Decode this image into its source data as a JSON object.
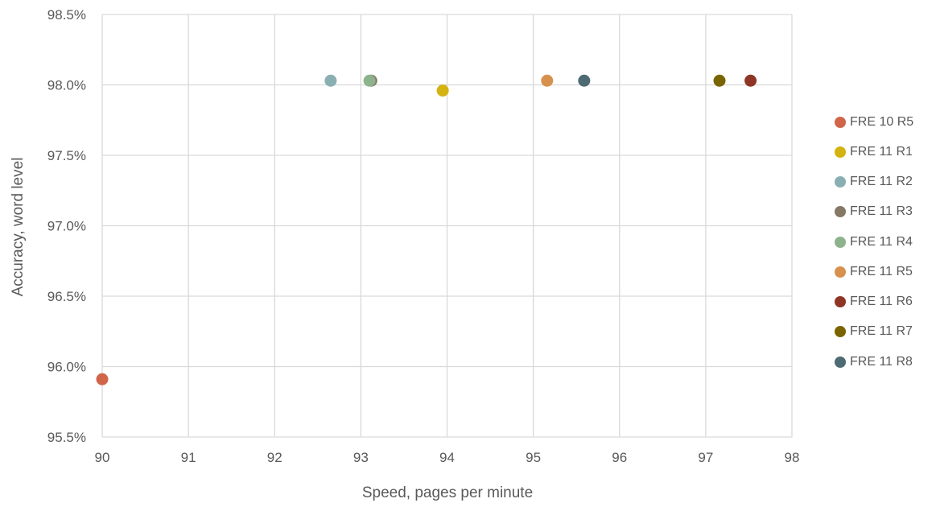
{
  "chart_data": {
    "type": "scatter",
    "title": "",
    "xlabel": "Speed, pages per minute",
    "ylabel": "Accuracy, word level",
    "xlim": [
      90,
      98
    ],
    "ylim": [
      95.5,
      98.5
    ],
    "x_ticks": [
      90,
      91,
      92,
      93,
      94,
      95,
      96,
      97,
      98
    ],
    "y_ticks": [
      95.5,
      96.0,
      96.5,
      97.0,
      97.5,
      98.0,
      98.5
    ],
    "y_tick_format": "percent_1dp",
    "x_tick_labels": [
      "90",
      "91",
      "92",
      "93",
      "94",
      "95",
      "96",
      "97",
      "98"
    ],
    "y_tick_labels": [
      "95.5%",
      "96.0%",
      "96.5%",
      "97.0%",
      "97.5%",
      "98.0%",
      "98.5%"
    ],
    "grid": true,
    "legend_position": "right",
    "series": [
      {
        "name": "FRE 10 R5",
        "color": "#D0654A",
        "x": 90.0,
        "y": 95.91
      },
      {
        "name": "FRE 11 R1",
        "color": "#D4B20F",
        "x": 93.95,
        "y": 97.96
      },
      {
        "name": "FRE 11 R2",
        "color": "#8AAFB3",
        "x": 92.65,
        "y": 98.03
      },
      {
        "name": "FRE 11 R3",
        "color": "#857866",
        "x": 93.12,
        "y": 98.03
      },
      {
        "name": "FRE 11 R4",
        "color": "#8DB38C",
        "x": 93.1,
        "y": 98.03
      },
      {
        "name": "FRE 11 R5",
        "color": "#D6914D",
        "x": 95.16,
        "y": 98.03
      },
      {
        "name": "FRE 11 R6",
        "color": "#8F3525",
        "x": 97.52,
        "y": 98.03
      },
      {
        "name": "FRE 11 R7",
        "color": "#7A6400",
        "x": 97.16,
        "y": 98.03
      },
      {
        "name": "FRE 11 R8",
        "color": "#4E6A72",
        "x": 95.59,
        "y": 98.03
      }
    ]
  }
}
